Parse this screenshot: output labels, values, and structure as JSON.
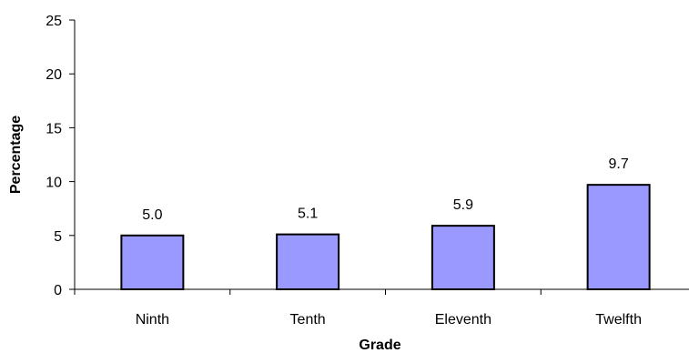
{
  "chart_data": {
    "type": "bar",
    "categories": [
      "Ninth",
      "Tenth",
      "Eleventh",
      "Twelfth"
    ],
    "values": [
      5.0,
      5.1,
      5.9,
      9.7
    ],
    "data_labels": [
      "5.0",
      "5.1",
      "5.9",
      "9.7"
    ],
    "xlabel": "Grade",
    "ylabel": "Percentage",
    "ylim": [
      0,
      25
    ],
    "yticks": [
      0,
      5,
      10,
      15,
      20,
      25
    ],
    "grid": false,
    "legend": "none",
    "bar_color": "#9999ff",
    "bar_outline": "#000000"
  }
}
